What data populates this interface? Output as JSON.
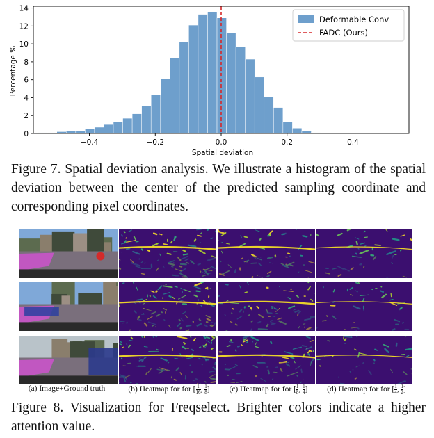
{
  "figure7": {
    "chart_data": {
      "type": "bar",
      "title": "",
      "xlabel": "Spatial deviation",
      "ylabel": "Percentage %",
      "xlim": [
        -0.57,
        0.57
      ],
      "ylim": [
        0,
        14.2
      ],
      "xticks": [
        -0.4,
        -0.2,
        0.0,
        0.2,
        0.4
      ],
      "xtick_labels": [
        "−0.4",
        "−0.2",
        "0.0",
        "0.2",
        "0.4"
      ],
      "yticks": [
        0,
        2,
        4,
        6,
        8,
        10,
        12,
        14
      ],
      "ytick_labels": [
        "0",
        "2",
        "4",
        "6",
        "8",
        "10",
        "12",
        "14"
      ],
      "bin_width": 0.0286,
      "bins_start": -0.556,
      "series": [
        {
          "name": "Deformable Conv",
          "color": "#6e9fcc",
          "values": [
            0.1,
            0.1,
            0.2,
            0.3,
            0.3,
            0.5,
            0.7,
            1.0,
            1.3,
            1.7,
            2.2,
            3.1,
            4.3,
            6.1,
            8.4,
            10.2,
            12.1,
            13.3,
            13.6,
            12.9,
            11.2,
            9.7,
            8.3,
            6.3,
            4.1,
            2.9,
            1.3,
            0.6,
            0.3,
            0.1,
            0.05
          ]
        }
      ],
      "reference_line": {
        "name": "FADC (Ours)",
        "x": 0.0,
        "color": "#d62728",
        "style": "dashed"
      },
      "legend_position": "top-right"
    },
    "caption": "Figure 7. Spatial deviation analysis. We illustrate a histogram of the spatial deviation between the center of the predicted sampling coordinate and corresponding pixel coordinates."
  },
  "figure8": {
    "labels": {
      "col_a": "(a) Image+Ground truth",
      "heatmap_prefix": "Heatmap for",
      "col_b": {
        "prefix": "(b)",
        "lo_num": "1",
        "lo_den": "16",
        "hi_num": "1",
        "hi_den": "8"
      },
      "col_c": {
        "prefix": "(c)",
        "lo_num": "1",
        "lo_den": "8",
        "hi_num": "1",
        "hi_den": "4"
      },
      "col_d": {
        "prefix": "(d)",
        "lo_num": "1",
        "lo_den": "4",
        "hi_num": "1",
        "hi_den": "2"
      }
    },
    "caption": "Figure 8. Visualization for Freqselect. Brighter colors indicate a higher attention value.",
    "colors": {
      "heat_low": "#3b0f6f",
      "heat_mid": "#21918c",
      "heat_high": "#fde725",
      "sky": "#7fa8d8",
      "road": "#7a6f7c",
      "ground_truth_overlay": "#d94fd8"
    }
  }
}
